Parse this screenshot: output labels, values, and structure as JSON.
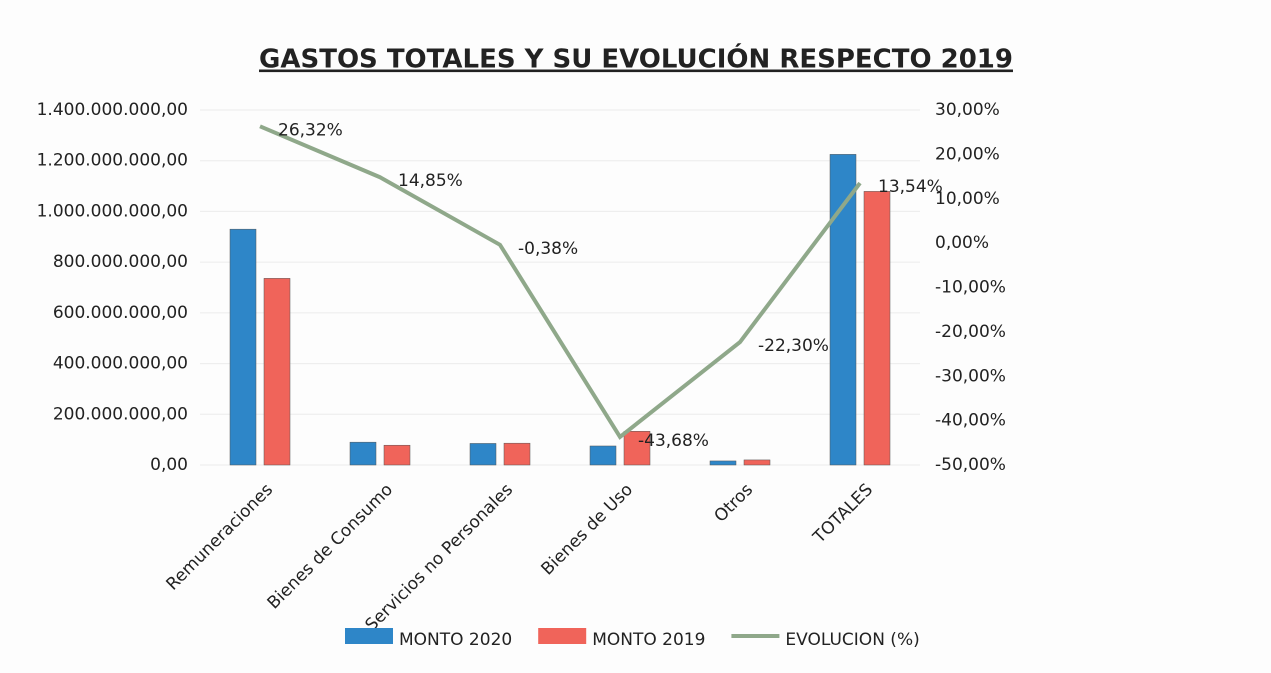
{
  "chart_data": {
    "type": "bar",
    "title": "GASTOS TOTALES Y SU EVOLUCIÓN RESPECTO 2019",
    "categories": [
      "Remuneraciones",
      "Bienes de Consumo",
      "Servicios no Personales",
      "Bienes de Uso",
      "Otros",
      "TOTALES"
    ],
    "series": [
      {
        "name": "MONTO 2020",
        "color": "#2e86c8",
        "values": [
          930000000,
          90000000,
          85000000,
          75000000,
          16000000,
          1225000000
        ]
      },
      {
        "name": "MONTO 2019",
        "color": "#f0645a",
        "values": [
          736000000,
          78000000,
          86000000,
          133000000,
          20000000,
          1079000000
        ]
      },
      {
        "name": "EVOLUCION (%)",
        "type": "line",
        "axis": "y2",
        "color": "#8fa88a",
        "values": [
          26.32,
          14.85,
          -0.38,
          -43.68,
          -22.3,
          13.54
        ],
        "value_labels": [
          "26,32%",
          "14,85%",
          "-0,38%",
          "-43,68%",
          "-22,30%",
          "13,54%"
        ]
      }
    ],
    "ylim": [
      0,
      1400000000
    ],
    "yticks": [
      {
        "value": 0,
        "label": "0,00"
      },
      {
        "value": 200000000,
        "label": "200.000.000,00"
      },
      {
        "value": 400000000,
        "label": "400.000.000,00"
      },
      {
        "value": 600000000,
        "label": "600.000.000,00"
      },
      {
        "value": 800000000,
        "label": "800.000.000,00"
      },
      {
        "value": 1000000000,
        "label": "1.000.000.000,00"
      },
      {
        "value": 1200000000,
        "label": "1.200.000.000,00"
      },
      {
        "value": 1400000000,
        "label": "1.400.000.000,00"
      }
    ],
    "y2lim": [
      -50,
      30
    ],
    "y2ticks": [
      {
        "value": -50,
        "label": "-50,00%"
      },
      {
        "value": -40,
        "label": "-40,00%"
      },
      {
        "value": -30,
        "label": "-30,00%"
      },
      {
        "value": -20,
        "label": "-20,00%"
      },
      {
        "value": -10,
        "label": "-10,00%"
      },
      {
        "value": 0,
        "label": "0,00%"
      },
      {
        "value": 10,
        "label": "10,00%"
      },
      {
        "value": 20,
        "label": "20,00%"
      },
      {
        "value": 30,
        "label": "30,00%"
      }
    ],
    "grid": true,
    "legend": "bottom"
  }
}
